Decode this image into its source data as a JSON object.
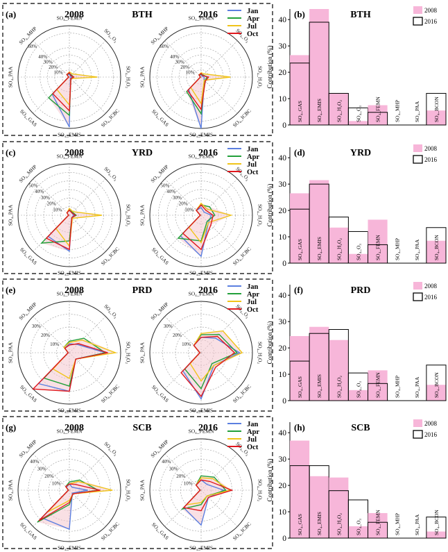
{
  "radar_axes": [
    "SO4_FEMN",
    "SO4_O3",
    "SO4_H2O2",
    "SO4_ICBC",
    "SO4_EMIS",
    "SO4_GAS",
    "SO4_PAA",
    "SO4_MHP"
  ],
  "radar_axis_labels": [
    "SO₄_FEMN",
    "SO₄_O₃",
    "SO₄_H₂O₂",
    "SO₄_ICBC",
    "SO₄_EMIS",
    "SO₄_GAS",
    "SO₄_PAA",
    "SO₄_MHP"
  ],
  "months": [
    "Jan",
    "Apr",
    "Jul",
    "Oct"
  ],
  "month_colors": [
    "#5b7fe0",
    "#22a03a",
    "#f0c419",
    "#e0181e"
  ],
  "bar_categories": [
    "SO₄_GAS",
    "SO₄_EMIS",
    "SO₄_H₂O₂",
    "SO₄_O₃",
    "SO₄_FEMN",
    "SO₄_MHP",
    "SO₄_PAA",
    "SO₄_BCON"
  ],
  "bar_ylabel": "Contribution (%)",
  "bar_legend": [
    "2008",
    "2016"
  ],
  "colors": {
    "bar2008": "#f7b6d9",
    "bar2016_edge": "#000000",
    "radar_fill": "#f4c6ce",
    "grid": "#999999"
  },
  "chart_data": [
    {
      "type": "radar",
      "panel": "(a)",
      "region": "BTH",
      "year": "2008",
      "rings": [
        10,
        20,
        30,
        40,
        60
      ],
      "ring_labels": [
        "10%",
        "20%",
        "30%",
        "40%",
        "60%"
      ],
      "rmax": 70,
      "series": [
        {
          "month": "Jan",
          "values": [
            4,
            2,
            3,
            2,
            68,
            33,
            1,
            4
          ]
        },
        {
          "month": "Apr",
          "values": [
            5,
            4,
            6,
            3,
            52,
            40,
            1,
            5
          ]
        },
        {
          "month": "Jul",
          "values": [
            7,
            6,
            38,
            3,
            38,
            24,
            1,
            5
          ]
        },
        {
          "month": "Oct",
          "values": [
            6,
            3,
            6,
            3,
            46,
            32,
            1,
            5
          ]
        }
      ]
    },
    {
      "type": "radar",
      "panel": "",
      "region": "BTH",
      "year": "2016",
      "rings": [
        10,
        20,
        30,
        40,
        60
      ],
      "ring_labels": [
        "10%",
        "20%",
        "30%",
        "40%",
        "60%"
      ],
      "rmax": 70,
      "series": [
        {
          "month": "Jan",
          "values": [
            3,
            2,
            4,
            6,
            70,
            24,
            1,
            4
          ]
        },
        {
          "month": "Apr",
          "values": [
            4,
            4,
            8,
            7,
            50,
            28,
            1,
            4
          ]
        },
        {
          "month": "Jul",
          "values": [
            6,
            6,
            40,
            6,
            36,
            20,
            1,
            4
          ]
        },
        {
          "month": "Oct",
          "values": [
            5,
            3,
            10,
            8,
            44,
            26,
            1,
            4
          ]
        }
      ]
    },
    {
      "type": "bar",
      "panel": "(b)",
      "title": "BTH",
      "ylim": [
        0,
        44
      ],
      "yticks": [
        0,
        10,
        20,
        30,
        40
      ],
      "series": [
        {
          "name": "2008",
          "values": [
            26.5,
            44,
            12,
            1.5,
            7.5,
            0,
            0,
            5.5
          ]
        },
        {
          "name": "2016",
          "values": [
            23.5,
            39,
            12,
            6.5,
            4.8,
            0,
            0,
            12
          ]
        }
      ]
    },
    {
      "type": "radar",
      "panel": "(c)",
      "region": "YRD",
      "year": "2008",
      "rings": [
        10,
        20,
        30,
        40,
        50
      ],
      "ring_labels": [
        "10%",
        "20%",
        "30%",
        "40%",
        "50%"
      ],
      "rmax": 60,
      "series": [
        {
          "month": "Jan",
          "values": [
            7,
            4,
            5,
            4,
            42,
            35,
            1,
            4
          ]
        },
        {
          "month": "Apr",
          "values": [
            6,
            5,
            8,
            4,
            30,
            46,
            1,
            4
          ]
        },
        {
          "month": "Jul",
          "values": [
            8,
            6,
            38,
            5,
            36,
            22,
            1,
            4
          ]
        },
        {
          "month": "Oct",
          "values": [
            6,
            4,
            7,
            4,
            40,
            38,
            1,
            4
          ]
        }
      ]
    },
    {
      "type": "radar",
      "panel": "",
      "region": "YRD",
      "year": "2016",
      "rings": [
        10,
        20,
        30,
        40,
        50
      ],
      "ring_labels": [
        "10%",
        "20%",
        "30%",
        "40%",
        "50%"
      ],
      "rmax": 60,
      "series": [
        {
          "month": "Jan",
          "values": [
            9,
            5,
            12,
            12,
            48,
            34,
            1,
            8
          ]
        },
        {
          "month": "Apr",
          "values": [
            12,
            14,
            16,
            10,
            30,
            38,
            1,
            8
          ]
        },
        {
          "month": "Jul",
          "values": [
            14,
            10,
            35,
            12,
            32,
            20,
            1,
            8
          ]
        },
        {
          "month": "Oct",
          "values": [
            12,
            8,
            14,
            16,
            40,
            30,
            1,
            8
          ]
        }
      ]
    },
    {
      "type": "bar",
      "panel": "(d)",
      "title": "YRD",
      "ylim": [
        0,
        44
      ],
      "yticks": [
        0,
        10,
        20,
        30,
        40
      ],
      "series": [
        {
          "name": "2008",
          "values": [
            26.5,
            31.5,
            13.5,
            3.5,
            16.5,
            0,
            0,
            8.5
          ]
        },
        {
          "name": "2016",
          "values": [
            20.5,
            30,
            17.5,
            12,
            7,
            0,
            0,
            13.5
          ]
        }
      ]
    },
    {
      "type": "radar",
      "panel": "(e)",
      "region": "PRD",
      "year": "2008",
      "rings": [
        10,
        20,
        30
      ],
      "ring_labels": [
        "10%",
        "20%",
        "30%"
      ],
      "rmax": 40,
      "series": [
        {
          "month": "Jan",
          "values": [
            7,
            9,
            28,
            7,
            30,
            34,
            1,
            5
          ]
        },
        {
          "month": "Apr",
          "values": [
            9,
            16,
            28,
            7,
            26,
            28,
            1,
            6
          ]
        },
        {
          "month": "Jul",
          "values": [
            8,
            14,
            36,
            7,
            20,
            18,
            1,
            6
          ]
        },
        {
          "month": "Oct",
          "values": [
            6,
            10,
            30,
            7,
            30,
            40,
            1,
            5
          ]
        }
      ]
    },
    {
      "type": "radar",
      "panel": "",
      "region": "PRD",
      "year": "2016",
      "rings": [
        10,
        20,
        30
      ],
      "ring_labels": [
        "10%",
        "20%",
        "30%"
      ],
      "rmax": 40,
      "series": [
        {
          "month": "Jan",
          "values": [
            12,
            16,
            30,
            14,
            36,
            20,
            1,
            8
          ]
        },
        {
          "month": "Apr",
          "values": [
            14,
            20,
            28,
            12,
            28,
            18,
            1,
            8
          ]
        },
        {
          "month": "Jul",
          "values": [
            15,
            24,
            32,
            14,
            22,
            12,
            1,
            8
          ]
        },
        {
          "month": "Oct",
          "values": [
            12,
            18,
            26,
            16,
            34,
            22,
            1,
            8
          ]
        }
      ]
    },
    {
      "type": "bar",
      "panel": "(f)",
      "title": "PRD",
      "ylim": [
        0,
        44
      ],
      "yticks": [
        0,
        10,
        20,
        30,
        40
      ],
      "series": [
        {
          "name": "2008",
          "values": [
            24.5,
            28,
            23,
            4,
            11.5,
            0,
            0,
            6
          ]
        },
        {
          "name": "2016",
          "values": [
            15,
            25.5,
            27,
            10.5,
            6.5,
            0,
            0,
            13.5
          ]
        }
      ]
    },
    {
      "type": "radar",
      "panel": "(g)",
      "region": "SCB",
      "year": "2008",
      "rings": [
        10,
        20,
        30,
        40
      ],
      "ring_labels": [
        "10%",
        "20%",
        "30%",
        "40%"
      ],
      "rmax": 50,
      "series": [
        {
          "month": "Jan",
          "values": [
            6,
            4,
            18,
            4,
            38,
            38,
            1,
            4
          ]
        },
        {
          "month": "Apr",
          "values": [
            8,
            14,
            28,
            5,
            14,
            44,
            1,
            5
          ]
        },
        {
          "month": "Jul",
          "values": [
            6,
            12,
            42,
            5,
            10,
            30,
            1,
            5
          ]
        },
        {
          "month": "Oct",
          "values": [
            6,
            8,
            30,
            5,
            12,
            42,
            1,
            5
          ]
        }
      ]
    },
    {
      "type": "radar",
      "panel": "",
      "region": "SCB",
      "year": "2016",
      "rings": [
        10,
        20,
        30,
        40
      ],
      "ring_labels": [
        "10%",
        "20%",
        "30%",
        "40%"
      ],
      "rmax": 50,
      "series": [
        {
          "month": "Jan",
          "values": [
            10,
            8,
            22,
            10,
            34,
            24,
            1,
            7
          ]
        },
        {
          "month": "Apr",
          "values": [
            14,
            18,
            24,
            8,
            14,
            26,
            1,
            7
          ]
        },
        {
          "month": "Jul",
          "values": [
            12,
            16,
            28,
            8,
            12,
            20,
            1,
            7
          ]
        },
        {
          "month": "Oct",
          "values": [
            10,
            12,
            30,
            10,
            20,
            24,
            1,
            7
          ]
        }
      ]
    },
    {
      "type": "bar",
      "panel": "(h)",
      "title": "SCB",
      "ylim": [
        0,
        44
      ],
      "yticks": [
        0,
        10,
        20,
        30,
        40
      ],
      "series": [
        {
          "name": "2008",
          "values": [
            37,
            23.5,
            23,
            4.5,
            9.5,
            0,
            0,
            2.5
          ]
        },
        {
          "name": "2016",
          "values": [
            27.5,
            27.5,
            18,
            14.5,
            6,
            0,
            0,
            8
          ]
        }
      ]
    }
  ]
}
